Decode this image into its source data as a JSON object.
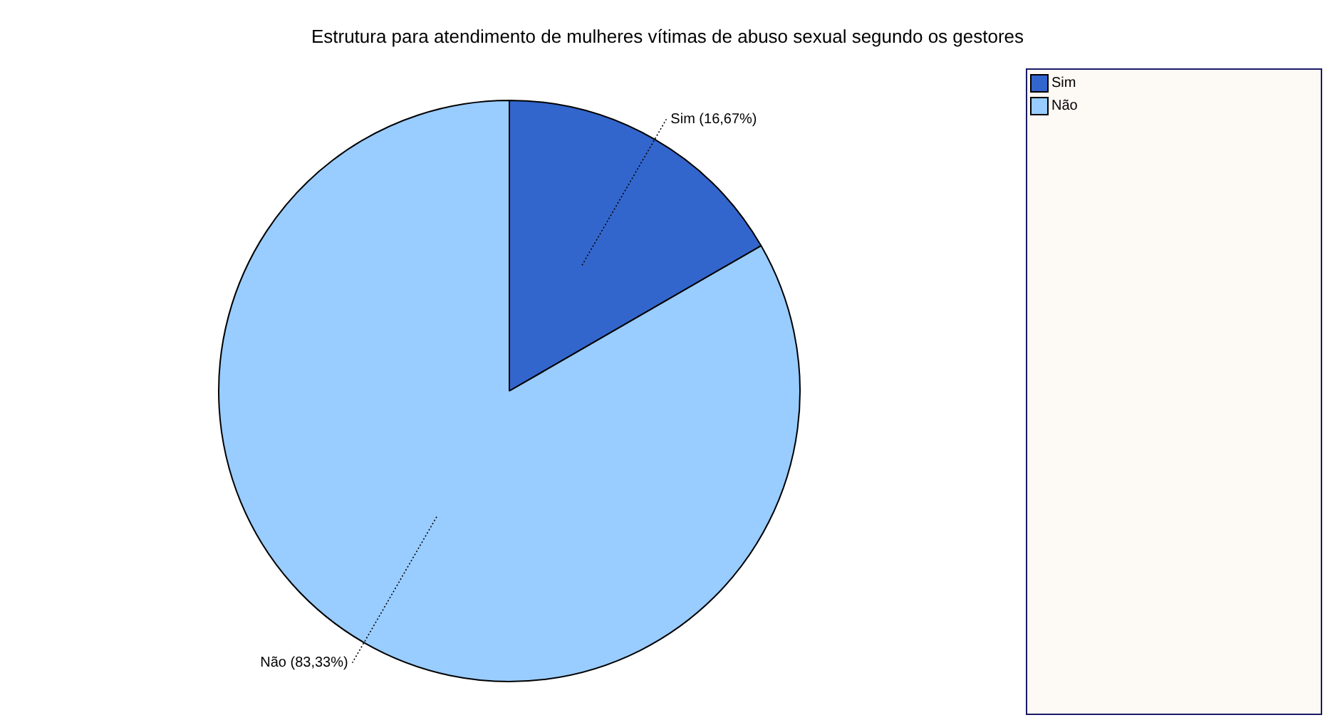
{
  "chart_data": {
    "type": "pie",
    "title": "Estrutura para atendimento de mulheres vítimas de abuso sexual segundo os gestores",
    "categories": [
      "Sim",
      "Não"
    ],
    "values": [
      16.67,
      83.33
    ],
    "colors": [
      "#3366cc",
      "#99ccff"
    ],
    "value_labels": [
      "Sim (16,67%)",
      "Não (83,33%)"
    ],
    "legend": "right"
  }
}
